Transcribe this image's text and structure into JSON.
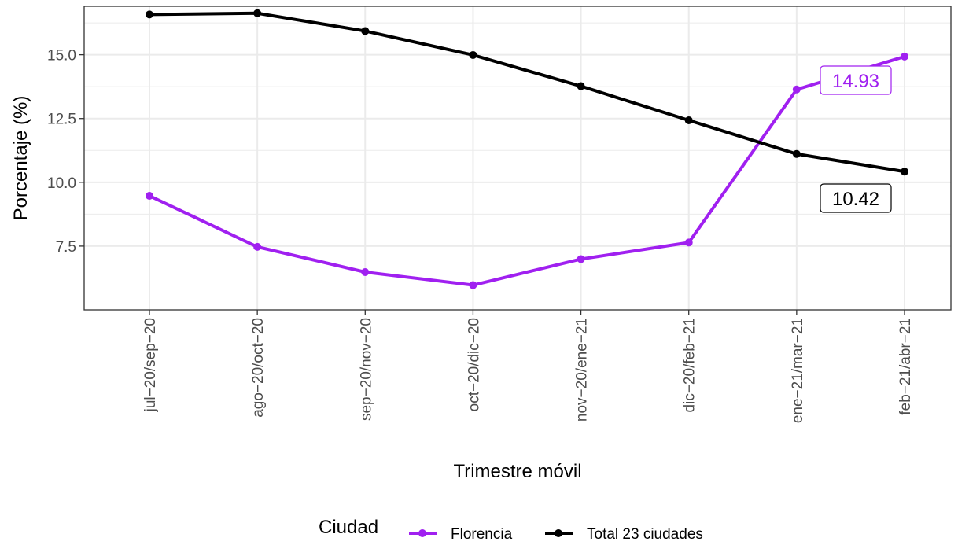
{
  "chart_data": {
    "type": "line",
    "title": "",
    "xlabel": "Trimestre móvil",
    "ylabel": "Porcentaje (%)",
    "categories": [
      "jul−20/sep−20",
      "ago−20/oct−20",
      "sep−20/nov−20",
      "oct−20/dic−20",
      "nov−20/ene−21",
      "dic−20/feb−21",
      "ene−21/mar−21",
      "feb−21/abr−21"
    ],
    "ylim": [
      5.0,
      16.9
    ],
    "yticks": [
      7.5,
      10.0,
      12.5,
      15.0
    ],
    "ytick_labels": [
      "7.5",
      "10.0",
      "12.5",
      "15.0"
    ],
    "grid": true,
    "legend": {
      "title": "Ciudad",
      "position": "bottom"
    },
    "series": [
      {
        "name": "Florencia",
        "color": "#A020F0",
        "values": [
          9.47,
          7.47,
          6.48,
          5.97,
          6.99,
          7.64,
          13.64,
          14.93
        ]
      },
      {
        "name": "Total 23 ciudades",
        "color": "#000000",
        "values": [
          16.58,
          16.63,
          15.93,
          14.99,
          13.77,
          12.43,
          11.11,
          10.42
        ]
      }
    ],
    "annotations": [
      {
        "series": 0,
        "label": "14.93"
      },
      {
        "series": 1,
        "label": "10.42"
      }
    ]
  }
}
